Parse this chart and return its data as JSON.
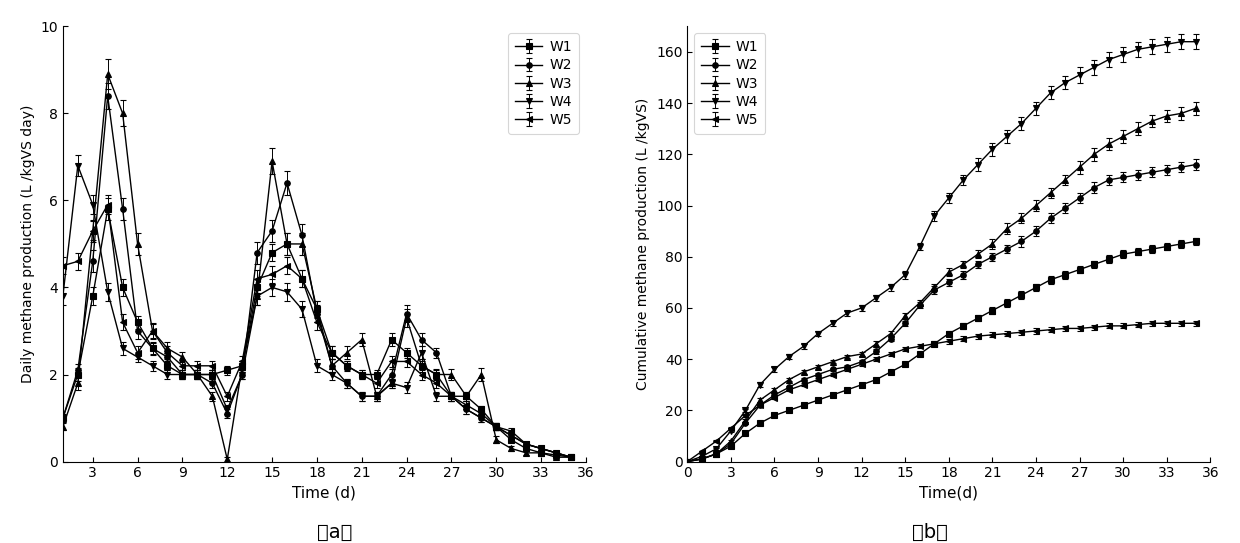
{
  "panel_a": {
    "title": "（a）",
    "xlabel": "Time (d)",
    "ylabel": "Daily methane production (L /kgVS day)",
    "xlim": [
      1,
      36
    ],
    "ylim": [
      0,
      10
    ],
    "xticks": [
      3,
      6,
      9,
      12,
      15,
      18,
      21,
      24,
      27,
      30,
      33,
      36
    ],
    "yticks": [
      0,
      2,
      4,
      6,
      8,
      10
    ],
    "series": {
      "W1": {
        "x": [
          1,
          2,
          3,
          4,
          5,
          6,
          7,
          8,
          9,
          10,
          11,
          12,
          13,
          14,
          15,
          16,
          17,
          18,
          19,
          20,
          21,
          22,
          23,
          24,
          25,
          26,
          27,
          28,
          29,
          30,
          31,
          32,
          33,
          34,
          35
        ],
        "y": [
          1.0,
          2.0,
          3.8,
          5.8,
          4.0,
          3.2,
          2.6,
          2.2,
          2.0,
          2.0,
          2.0,
          2.1,
          2.2,
          4.0,
          4.8,
          5.0,
          4.2,
          3.5,
          2.5,
          2.2,
          2.0,
          2.0,
          2.8,
          2.5,
          2.2,
          2.0,
          1.5,
          1.5,
          1.2,
          0.8,
          0.5,
          0.3,
          0.2,
          0.15,
          0.1
        ],
        "err": [
          0.1,
          0.15,
          0.2,
          0.25,
          0.2,
          0.15,
          0.12,
          0.1,
          0.1,
          0.1,
          0.1,
          0.1,
          0.1,
          0.2,
          0.2,
          0.25,
          0.2,
          0.18,
          0.15,
          0.1,
          0.1,
          0.1,
          0.15,
          0.12,
          0.1,
          0.1,
          0.1,
          0.1,
          0.08,
          0.08,
          0.06,
          0.05,
          0.05,
          0.05,
          0.05
        ]
      },
      "W2": {
        "x": [
          1,
          2,
          3,
          4,
          5,
          6,
          7,
          8,
          9,
          10,
          11,
          12,
          13,
          14,
          15,
          16,
          17,
          18,
          19,
          20,
          21,
          22,
          23,
          24,
          25,
          26,
          27,
          28,
          29,
          30,
          31,
          32,
          33,
          34,
          35
        ],
        "y": [
          1.0,
          2.1,
          4.6,
          8.4,
          5.8,
          3.0,
          2.6,
          2.4,
          2.0,
          2.0,
          1.8,
          1.1,
          2.0,
          4.8,
          5.3,
          6.4,
          5.2,
          3.4,
          2.2,
          1.8,
          1.5,
          1.5,
          2.0,
          3.4,
          2.8,
          2.5,
          1.5,
          1.2,
          1.0,
          0.8,
          0.6,
          0.4,
          0.3,
          0.2,
          0.1
        ],
        "err": [
          0.1,
          0.15,
          0.25,
          0.3,
          0.25,
          0.18,
          0.15,
          0.12,
          0.1,
          0.1,
          0.1,
          0.1,
          0.1,
          0.25,
          0.25,
          0.28,
          0.25,
          0.2,
          0.15,
          0.1,
          0.1,
          0.1,
          0.12,
          0.2,
          0.15,
          0.12,
          0.1,
          0.1,
          0.1,
          0.08,
          0.07,
          0.05,
          0.05,
          0.05,
          0.05
        ]
      },
      "W3": {
        "x": [
          1,
          2,
          3,
          4,
          5,
          6,
          7,
          8,
          9,
          10,
          11,
          12,
          13,
          14,
          15,
          16,
          17,
          18,
          19,
          20,
          21,
          22,
          23,
          24,
          25,
          26,
          27,
          28,
          29,
          30,
          31,
          32,
          33,
          34,
          35
        ],
        "y": [
          0.8,
          1.8,
          5.3,
          8.9,
          8.0,
          5.0,
          3.0,
          2.6,
          2.4,
          2.0,
          1.5,
          0.05,
          2.2,
          3.8,
          6.9,
          5.0,
          5.0,
          3.5,
          2.2,
          2.5,
          2.8,
          1.5,
          1.8,
          3.3,
          2.2,
          2.0,
          2.0,
          1.5,
          2.0,
          0.5,
          0.3,
          0.2,
          0.2,
          0.1,
          0.1
        ],
        "err": [
          0.08,
          0.15,
          0.25,
          0.35,
          0.3,
          0.25,
          0.18,
          0.15,
          0.12,
          0.1,
          0.1,
          0.05,
          0.1,
          0.2,
          0.3,
          0.25,
          0.25,
          0.2,
          0.15,
          0.15,
          0.15,
          0.1,
          0.1,
          0.2,
          0.15,
          0.12,
          0.12,
          0.1,
          0.15,
          0.08,
          0.05,
          0.05,
          0.05,
          0.05,
          0.05
        ]
      },
      "W4": {
        "x": [
          1,
          2,
          3,
          4,
          5,
          6,
          7,
          8,
          9,
          10,
          11,
          12,
          13,
          14,
          15,
          16,
          17,
          18,
          19,
          20,
          21,
          22,
          23,
          24,
          25,
          26,
          27,
          28,
          29,
          30,
          31,
          32,
          33,
          34,
          35
        ],
        "y": [
          3.8,
          6.8,
          5.9,
          3.9,
          2.6,
          2.4,
          2.2,
          2.0,
          2.0,
          2.0,
          2.0,
          1.2,
          2.0,
          3.8,
          4.0,
          3.9,
          3.5,
          2.2,
          2.0,
          1.8,
          1.5,
          1.5,
          1.8,
          1.7,
          2.5,
          1.5,
          1.5,
          1.2,
          1.0,
          0.8,
          0.6,
          0.4,
          0.3,
          0.2,
          0.1
        ],
        "err": [
          0.2,
          0.25,
          0.22,
          0.2,
          0.15,
          0.12,
          0.12,
          0.1,
          0.1,
          0.1,
          0.1,
          0.1,
          0.1,
          0.2,
          0.2,
          0.2,
          0.18,
          0.15,
          0.12,
          0.1,
          0.1,
          0.1,
          0.1,
          0.12,
          0.15,
          0.1,
          0.1,
          0.1,
          0.08,
          0.08,
          0.06,
          0.05,
          0.05,
          0.05,
          0.05
        ]
      },
      "W5": {
        "x": [
          1,
          2,
          3,
          4,
          5,
          6,
          7,
          8,
          9,
          10,
          11,
          12,
          13,
          14,
          15,
          16,
          17,
          18,
          19,
          20,
          21,
          22,
          23,
          24,
          25,
          26,
          27,
          28,
          29,
          30,
          31,
          32,
          33,
          34,
          35
        ],
        "y": [
          4.5,
          4.6,
          5.3,
          5.9,
          3.2,
          2.5,
          3.0,
          2.5,
          2.2,
          2.2,
          2.2,
          1.5,
          2.3,
          4.2,
          4.3,
          4.5,
          4.2,
          3.2,
          2.5,
          2.2,
          2.0,
          1.8,
          2.3,
          2.3,
          2.0,
          1.8,
          1.5,
          1.3,
          1.1,
          0.8,
          0.7,
          0.4,
          0.3,
          0.2,
          0.1
        ],
        "err": [
          0.2,
          0.2,
          0.22,
          0.22,
          0.18,
          0.15,
          0.15,
          0.15,
          0.1,
          0.1,
          0.1,
          0.1,
          0.12,
          0.2,
          0.2,
          0.2,
          0.2,
          0.18,
          0.15,
          0.12,
          0.1,
          0.1,
          0.12,
          0.12,
          0.12,
          0.1,
          0.1,
          0.1,
          0.08,
          0.08,
          0.06,
          0.05,
          0.05,
          0.05,
          0.05
        ]
      }
    }
  },
  "panel_b": {
    "title": "（b）",
    "xlabel": "Time(d)",
    "ylabel": "Cumulative methane production (L /kgVS)",
    "xlim": [
      0,
      35
    ],
    "ylim": [
      0,
      170
    ],
    "xticks": [
      0,
      3,
      6,
      9,
      12,
      15,
      18,
      21,
      24,
      27,
      30,
      33,
      36
    ],
    "yticks": [
      0,
      20,
      40,
      60,
      80,
      100,
      120,
      140,
      160
    ],
    "series": {
      "W1": {
        "x": [
          0,
          1,
          2,
          3,
          4,
          5,
          6,
          7,
          8,
          9,
          10,
          11,
          12,
          13,
          14,
          15,
          16,
          17,
          18,
          19,
          20,
          21,
          22,
          23,
          24,
          25,
          26,
          27,
          28,
          29,
          30,
          31,
          32,
          33,
          34,
          35
        ],
        "y": [
          0,
          1,
          3,
          6,
          11,
          15,
          18,
          20,
          22,
          24,
          26,
          28,
          30,
          32,
          35,
          38,
          42,
          46,
          50,
          53,
          56,
          59,
          62,
          65,
          68,
          71,
          73,
          75,
          77,
          79,
          81,
          82,
          83,
          84,
          85,
          86
        ],
        "err": [
          0,
          0.1,
          0.15,
          0.3,
          0.4,
          0.5,
          0.5,
          0.5,
          0.5,
          0.5,
          0.5,
          0.5,
          0.5,
          0.6,
          0.6,
          0.7,
          0.8,
          1.0,
          1.0,
          1.2,
          1.2,
          1.2,
          1.5,
          1.5,
          1.5,
          1.5,
          1.5,
          1.5,
          1.5,
          1.5,
          1.5,
          1.5,
          1.5,
          1.5,
          1.5,
          1.5
        ]
      },
      "W2": {
        "x": [
          0,
          1,
          2,
          3,
          4,
          5,
          6,
          7,
          8,
          9,
          10,
          11,
          12,
          13,
          14,
          15,
          16,
          17,
          18,
          19,
          20,
          21,
          22,
          23,
          24,
          25,
          26,
          27,
          28,
          29,
          30,
          31,
          32,
          33,
          34,
          35
        ],
        "y": [
          0,
          1,
          3,
          7,
          15,
          22,
          26,
          29,
          32,
          34,
          36,
          37,
          39,
          43,
          48,
          54,
          61,
          67,
          70,
          73,
          77,
          80,
          83,
          86,
          90,
          95,
          99,
          103,
          107,
          110,
          111,
          112,
          113,
          114,
          115,
          116
        ],
        "err": [
          0,
          0.1,
          0.2,
          0.3,
          0.5,
          0.6,
          0.6,
          0.6,
          0.6,
          0.6,
          0.6,
          0.6,
          0.6,
          0.8,
          1.0,
          1.0,
          1.2,
          1.5,
          1.5,
          1.5,
          1.5,
          1.5,
          1.5,
          2.0,
          2.0,
          2.0,
          2.0,
          2.0,
          2.0,
          2.0,
          2.0,
          2.0,
          2.0,
          2.0,
          2.0,
          2.0
        ]
      },
      "W3": {
        "x": [
          0,
          1,
          2,
          3,
          4,
          5,
          6,
          7,
          8,
          9,
          10,
          11,
          12,
          13,
          14,
          15,
          16,
          17,
          18,
          19,
          20,
          21,
          22,
          23,
          24,
          25,
          26,
          27,
          28,
          29,
          30,
          31,
          32,
          33,
          34,
          35
        ],
        "y": [
          0,
          1,
          3,
          8,
          16,
          24,
          28,
          32,
          35,
          37,
          39,
          41,
          42,
          46,
          50,
          57,
          62,
          68,
          74,
          77,
          81,
          85,
          91,
          95,
          100,
          105,
          110,
          115,
          120,
          124,
          127,
          130,
          133,
          135,
          136,
          138
        ],
        "err": [
          0,
          0.1,
          0.2,
          0.4,
          0.6,
          0.7,
          0.7,
          0.7,
          0.7,
          0.7,
          0.7,
          0.7,
          0.7,
          1.0,
          1.0,
          1.2,
          1.2,
          1.5,
          1.5,
          1.5,
          1.5,
          2.0,
          2.0,
          2.0,
          2.0,
          2.0,
          2.0,
          2.5,
          2.5,
          2.5,
          2.5,
          2.5,
          2.5,
          2.5,
          2.5,
          2.5
        ]
      },
      "W4": {
        "x": [
          0,
          1,
          2,
          3,
          4,
          5,
          6,
          7,
          8,
          9,
          10,
          11,
          12,
          13,
          14,
          15,
          16,
          17,
          18,
          19,
          20,
          21,
          22,
          23,
          24,
          25,
          26,
          27,
          28,
          29,
          30,
          31,
          32,
          33,
          34,
          35
        ],
        "y": [
          0,
          2,
          5,
          12,
          20,
          30,
          36,
          41,
          45,
          50,
          54,
          58,
          60,
          64,
          68,
          73,
          84,
          96,
          103,
          110,
          116,
          122,
          127,
          132,
          138,
          144,
          148,
          151,
          154,
          157,
          159,
          161,
          162,
          163,
          164,
          164
        ],
        "err": [
          0,
          0.2,
          0.3,
          0.5,
          0.7,
          0.9,
          1.0,
          1.0,
          1.0,
          1.0,
          1.0,
          1.0,
          1.0,
          1.2,
          1.2,
          1.5,
          1.5,
          2.0,
          2.0,
          2.0,
          2.5,
          2.5,
          2.5,
          2.5,
          2.5,
          2.5,
          2.5,
          3.0,
          3.0,
          3.0,
          3.0,
          3.0,
          3.0,
          3.0,
          3.0,
          3.0
        ]
      },
      "W5": {
        "x": [
          0,
          1,
          2,
          3,
          4,
          5,
          6,
          7,
          8,
          9,
          10,
          11,
          12,
          13,
          14,
          15,
          16,
          17,
          18,
          19,
          20,
          21,
          22,
          23,
          24,
          25,
          26,
          27,
          28,
          29,
          30,
          31,
          32,
          33,
          34,
          35
        ],
        "y": [
          0,
          4,
          8,
          13,
          18,
          22,
          25,
          28,
          30,
          32,
          34,
          36,
          38,
          40,
          42,
          44,
          45,
          46,
          47,
          48,
          49,
          49.5,
          50,
          50.5,
          51,
          51.5,
          52,
          52,
          52.5,
          53,
          53,
          53.5,
          54,
          54,
          54,
          54
        ],
        "err": [
          0,
          0.2,
          0.3,
          0.4,
          0.5,
          0.5,
          0.6,
          0.6,
          0.6,
          0.6,
          0.6,
          0.7,
          0.7,
          0.8,
          0.8,
          0.8,
          0.8,
          0.8,
          1.0,
          1.0,
          1.0,
          1.0,
          1.0,
          1.0,
          1.0,
          1.0,
          1.0,
          1.0,
          1.0,
          1.0,
          1.0,
          1.0,
          1.0,
          1.0,
          1.0,
          1.0
        ]
      }
    }
  },
  "series_order": [
    "W1",
    "W2",
    "W3",
    "W4",
    "W5"
  ],
  "markers": {
    "W1": "s",
    "W2": "o",
    "W3": "^",
    "W4": "v",
    "W5": "<"
  },
  "color": "#000000",
  "markersize": 4,
  "linewidth": 1.0
}
